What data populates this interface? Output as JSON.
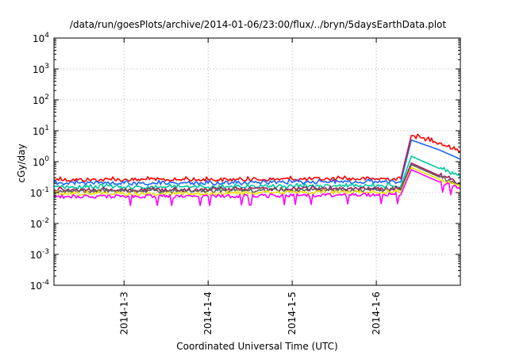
{
  "chart_data": {
    "type": "line",
    "title": "/data/run/goesPlots/archive/2014-01-06/23:00/flux/../bryn/5daysEarthData.plot",
    "xlabel": "Coordinated Universal Time (UTC)",
    "ylabel": "cGy/day",
    "yscale": "log",
    "ylim": [
      0.0001,
      10000
    ],
    "xlim": [
      "2014-01-02 04:00",
      "2014-01-07 00:00"
    ],
    "grid": true,
    "legend": "none",
    "x_ticks": [
      "2014-1-3",
      "2014-1-4",
      "2014-1-5",
      "2014-1-6"
    ],
    "y_ticks": [
      {
        "base": "10",
        "exp": "-4"
      },
      {
        "base": "10",
        "exp": "-3"
      },
      {
        "base": "10",
        "exp": "-2"
      },
      {
        "base": "10",
        "exp": "-1"
      },
      {
        "base": "10",
        "exp": "0"
      },
      {
        "base": "10",
        "exp": "1"
      },
      {
        "base": "10",
        "exp": "2"
      },
      {
        "base": "10",
        "exp": "3"
      },
      {
        "base": "10",
        "exp": "4"
      }
    ],
    "series": [
      {
        "color": "#ff0000",
        "x": [
          "2014-01-02 04:00",
          "2014-01-03 00:00",
          "2014-01-04 00:00",
          "2014-01-05 00:00",
          "2014-01-06 00:00",
          "2014-01-06 07:00",
          "2014-01-06 10:00",
          "2014-01-06 18:00",
          "2014-01-07 00:00"
        ],
        "y": [
          0.26,
          0.26,
          0.26,
          0.27,
          0.28,
          0.28,
          7.0,
          4.0,
          2.2
        ]
      },
      {
        "color": "#1e64ff",
        "x": [
          "2014-01-02 04:00",
          "2014-01-03 00:00",
          "2014-01-04 00:00",
          "2014-01-05 00:00",
          "2014-01-06 00:00",
          "2014-01-06 07:00",
          "2014-01-06 10:00",
          "2014-01-06 18:00",
          "2014-01-07 00:00"
        ],
        "y": [
          0.2,
          0.2,
          0.2,
          0.21,
          0.22,
          0.22,
          5.0,
          2.4,
          1.2
        ]
      },
      {
        "color": "#00c8a0",
        "x": [
          "2014-01-02 04:00",
          "2014-01-03 00:00",
          "2014-01-04 00:00",
          "2014-01-05 00:00",
          "2014-01-06 00:00",
          "2014-01-06 07:00",
          "2014-01-06 10:00",
          "2014-01-06 18:00",
          "2014-01-07 00:00"
        ],
        "y": [
          0.15,
          0.15,
          0.15,
          0.16,
          0.16,
          0.16,
          1.5,
          0.6,
          0.32
        ]
      },
      {
        "color": "#a01a5a",
        "x": [
          "2014-01-02 04:00",
          "2014-01-03 00:00",
          "2014-01-04 00:00",
          "2014-01-05 00:00",
          "2014-01-06 00:00",
          "2014-01-06 07:00",
          "2014-01-06 10:00",
          "2014-01-06 18:00",
          "2014-01-07 00:00"
        ],
        "y": [
          0.12,
          0.12,
          0.12,
          0.13,
          0.13,
          0.13,
          0.9,
          0.35,
          0.2
        ]
      },
      {
        "color": "#606060",
        "x": [
          "2014-01-02 04:00",
          "2014-01-03 00:00",
          "2014-01-04 00:00",
          "2014-01-05 00:00",
          "2014-01-06 00:00",
          "2014-01-06 07:00",
          "2014-01-06 10:00",
          "2014-01-06 18:00",
          "2014-01-07 00:00"
        ],
        "y": [
          0.11,
          0.11,
          0.11,
          0.12,
          0.12,
          0.12,
          0.8,
          0.32,
          0.18
        ]
      },
      {
        "color": "#f0e000",
        "x": [
          "2014-01-02 04:00",
          "2014-01-03 00:00",
          "2014-01-04 00:00",
          "2014-01-05 00:00",
          "2014-01-06 00:00",
          "2014-01-06 07:00",
          "2014-01-06 10:00",
          "2014-01-06 18:00",
          "2014-01-07 00:00"
        ],
        "y": [
          0.09,
          0.09,
          0.09,
          0.1,
          0.1,
          0.1,
          0.65,
          0.27,
          0.15
        ]
      },
      {
        "color": "#ff00ff",
        "x": [
          "2014-01-02 04:00",
          "2014-01-03 00:00",
          "2014-01-04 00:00",
          "2014-01-05 00:00",
          "2014-01-06 00:00",
          "2014-01-06 07:00",
          "2014-01-06 10:00",
          "2014-01-06 18:00",
          "2014-01-07 00:00"
        ],
        "y": [
          0.075,
          0.075,
          0.075,
          0.08,
          0.085,
          0.085,
          0.55,
          0.22,
          0.13
        ]
      }
    ]
  }
}
